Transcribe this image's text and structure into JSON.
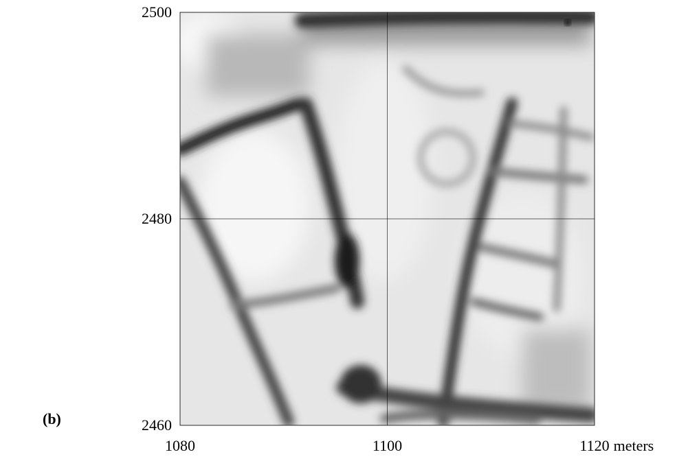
{
  "chart_data": {
    "type": "image",
    "panel_label": "(b)",
    "x_label": "meters",
    "xlim": [
      1080,
      1120
    ],
    "xticks": [
      1080,
      1100,
      1120
    ],
    "ylim": [
      2460,
      2500
    ],
    "yticks": [
      2460,
      2480,
      2500
    ],
    "grid": true,
    "color": "#000000"
  }
}
